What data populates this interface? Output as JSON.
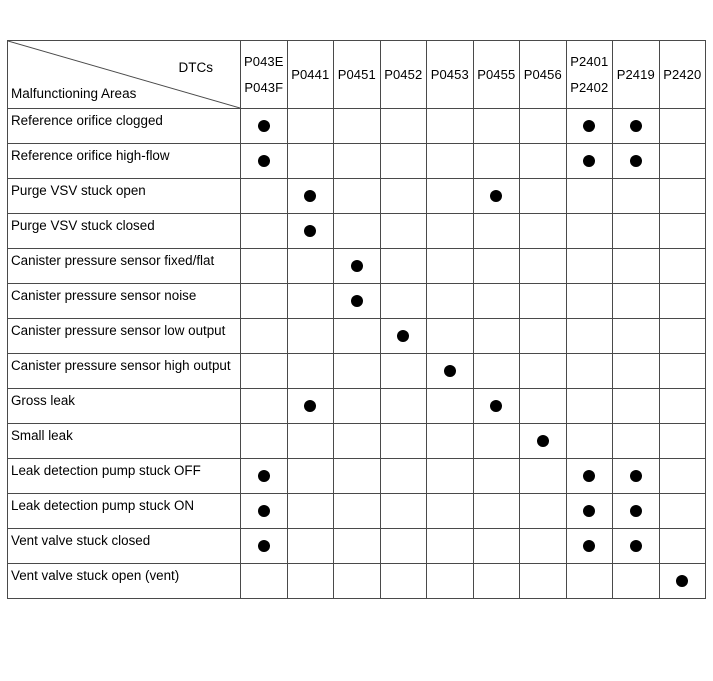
{
  "colors": {
    "background": "#ffffff",
    "border": "#4a4a4a",
    "text": "#000000",
    "dot": "#000000"
  },
  "table": {
    "corner": {
      "top_right_label": "DTCs",
      "bottom_left_label": "Malfunctioning Areas"
    },
    "mark_glyph": "●",
    "dtc_columns": [
      [
        "P043E",
        "P043F"
      ],
      [
        "P0441"
      ],
      [
        "P0451"
      ],
      [
        "P0452"
      ],
      [
        "P0453"
      ],
      [
        "P0455"
      ],
      [
        "P0456"
      ],
      [
        "P2401",
        "P2402"
      ],
      [
        "P2419"
      ],
      [
        "P2420"
      ]
    ],
    "rows": [
      {
        "label": "Reference orifice clogged",
        "marks": [
          1,
          0,
          0,
          0,
          0,
          0,
          0,
          1,
          1,
          0
        ]
      },
      {
        "label": "Reference orifice high-flow",
        "marks": [
          1,
          0,
          0,
          0,
          0,
          0,
          0,
          1,
          1,
          0
        ]
      },
      {
        "label": "Purge VSV stuck open",
        "marks": [
          0,
          1,
          0,
          0,
          0,
          1,
          0,
          0,
          0,
          0
        ]
      },
      {
        "label": "Purge VSV stuck closed",
        "marks": [
          0,
          1,
          0,
          0,
          0,
          0,
          0,
          0,
          0,
          0
        ]
      },
      {
        "label": "Canister pressure sensor fixed/flat",
        "marks": [
          0,
          0,
          1,
          0,
          0,
          0,
          0,
          0,
          0,
          0
        ]
      },
      {
        "label": "Canister pressure sensor noise",
        "marks": [
          0,
          0,
          1,
          0,
          0,
          0,
          0,
          0,
          0,
          0
        ]
      },
      {
        "label": "Canister pressure sensor low output",
        "marks": [
          0,
          0,
          0,
          1,
          0,
          0,
          0,
          0,
          0,
          0
        ]
      },
      {
        "label": "Canister pressure sensor high output",
        "marks": [
          0,
          0,
          0,
          0,
          1,
          0,
          0,
          0,
          0,
          0
        ]
      },
      {
        "label": "Gross leak",
        "marks": [
          0,
          1,
          0,
          0,
          0,
          1,
          0,
          0,
          0,
          0
        ]
      },
      {
        "label": "Small leak",
        "marks": [
          0,
          0,
          0,
          0,
          0,
          0,
          1,
          0,
          0,
          0
        ]
      },
      {
        "label": "Leak detection pump stuck OFF",
        "marks": [
          1,
          0,
          0,
          0,
          0,
          0,
          0,
          1,
          1,
          0
        ]
      },
      {
        "label": "Leak detection pump stuck ON",
        "marks": [
          1,
          0,
          0,
          0,
          0,
          0,
          0,
          1,
          1,
          0
        ]
      },
      {
        "label": "Vent valve stuck closed",
        "marks": [
          1,
          0,
          0,
          0,
          0,
          0,
          0,
          1,
          1,
          0
        ]
      },
      {
        "label": "Vent valve stuck open (vent)",
        "marks": [
          0,
          0,
          0,
          0,
          0,
          0,
          0,
          0,
          0,
          1
        ]
      }
    ]
  }
}
